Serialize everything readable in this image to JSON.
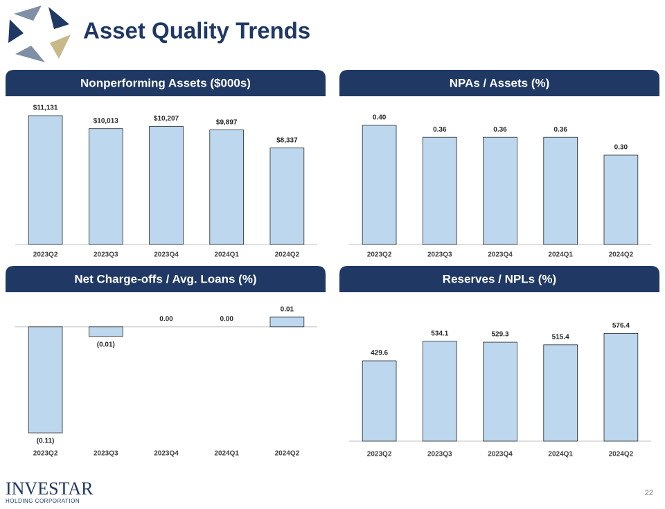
{
  "header": {
    "title": "Asset Quality Trends"
  },
  "chart_data": [
    {
      "type": "bar",
      "title": "Nonperforming Assets ($000s)",
      "categories": [
        "2023Q2",
        "2023Q3",
        "2023Q4",
        "2024Q1",
        "2024Q2"
      ],
      "values": [
        11131,
        10013,
        10207,
        9897,
        8337
      ],
      "value_labels": [
        "$11,131",
        "$10,013",
        "$10,207",
        "$9,897",
        "$8,337"
      ],
      "color": "#bdd7ee",
      "ylim": [
        0,
        12000
      ]
    },
    {
      "type": "bar",
      "title": "NPAs / Assets (%)",
      "categories": [
        "2023Q2",
        "2023Q3",
        "2023Q4",
        "2024Q1",
        "2024Q2"
      ],
      "values": [
        0.4,
        0.36,
        0.36,
        0.36,
        0.3
      ],
      "value_labels": [
        "0.40",
        "0.36",
        "0.36",
        "0.36",
        "0.30"
      ],
      "color": "#bdd7ee",
      "ylim": [
        0,
        0.45
      ]
    },
    {
      "type": "bar",
      "title": "Net Charge-offs / Avg. Loans (%)",
      "categories": [
        "2023Q2",
        "2023Q3",
        "2023Q4",
        "2024Q1",
        "2024Q2"
      ],
      "values": [
        -0.11,
        -0.01,
        0,
        0,
        0.01
      ],
      "value_labels": [
        "(0.11)",
        "(0.01)",
        "0.00",
        "0.00",
        "0.01"
      ],
      "color": "#bdd7ee",
      "ylim": [
        -0.12,
        0.02
      ]
    },
    {
      "type": "bar",
      "title": "Reserves / NPLs (%)",
      "categories": [
        "2023Q2",
        "2023Q3",
        "2023Q4",
        "2024Q1",
        "2024Q2"
      ],
      "values": [
        429.6,
        534.1,
        529.3,
        515.4,
        576.4
      ],
      "color": "#bdd7ee",
      "ylim": [
        0,
        700
      ]
    }
  ],
  "footer": {
    "logo": "INVESTAR",
    "logo_sub": "HOLDING CORPORATION",
    "page": "22"
  }
}
